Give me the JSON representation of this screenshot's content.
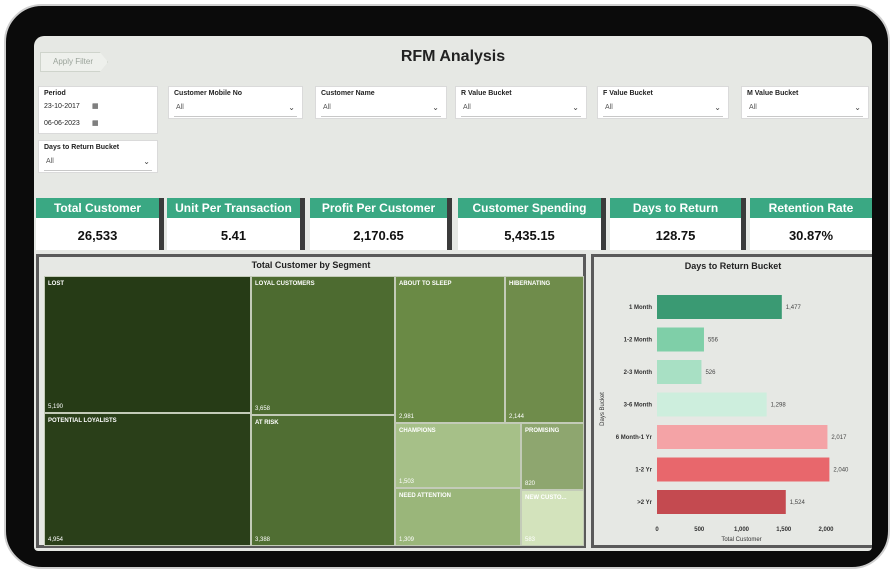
{
  "header": {
    "title": "RFM Analysis",
    "apply_filter": "Apply Filter"
  },
  "filters": {
    "period": {
      "label": "Period",
      "start": "23-10-2017",
      "end": "06-06-2023"
    },
    "customer_mobile": {
      "label": "Customer Mobile No",
      "value": "All"
    },
    "customer_name": {
      "label": "Customer Name",
      "value": "All"
    },
    "r_bucket": {
      "label": "R Value Bucket",
      "value": "All"
    },
    "f_bucket": {
      "label": "F Value Bucket",
      "value": "All"
    },
    "m_bucket": {
      "label": "M Value Bucket",
      "value": "All"
    },
    "days_bucket": {
      "label": "Days to Return Bucket",
      "value": "All"
    }
  },
  "kpis": [
    {
      "label": "Total Customer",
      "value": "26,533"
    },
    {
      "label": "Unit Per Transaction",
      "value": "5.41"
    },
    {
      "label": "Profit Per Customer",
      "value": "2,170.65"
    },
    {
      "label": "Customer Spending",
      "value": "5,435.15"
    },
    {
      "label": "Days to Return",
      "value": "128.75"
    },
    {
      "label": "Retention Rate",
      "value": "30.87%"
    }
  ],
  "treemap": {
    "title": "Total Customer by Segment",
    "tiles": [
      {
        "name": "LOST",
        "value": "5,190",
        "color": "#263b16"
      },
      {
        "name": "POTENTIAL LOYALISTS",
        "value": "4,954",
        "color": "#2a3f19"
      },
      {
        "name": "LOYAL CUSTOMERS",
        "value": "3,658",
        "color": "#4d6b30"
      },
      {
        "name": "AT RISK",
        "value": "3,388",
        "color": "#506e33"
      },
      {
        "name": "ABOUT TO SLEEP",
        "value": "2,981",
        "color": "#6a8a45"
      },
      {
        "name": "HIBERNATING",
        "value": "2,144",
        "color": "#6f8c4b"
      },
      {
        "name": "CHAMPIONS",
        "value": "1,503",
        "color": "#a6c088"
      },
      {
        "name": "NEED ATTENTION",
        "value": "1,309",
        "color": "#9ab67a"
      },
      {
        "name": "PROMISING",
        "value": "820",
        "color": "#8ea66f"
      },
      {
        "name": "NEW CUSTO...",
        "value": "583",
        "color": "#d3e3bc"
      }
    ]
  },
  "chart_data": {
    "type": "bar",
    "orientation": "horizontal",
    "title": "Days to Return Bucket",
    "xlabel": "Total Customer",
    "ylabel": "Days Bucket",
    "categories": [
      "1 Month",
      "1-2 Month",
      "2-3 Month",
      "3-6 Month",
      "6 Month-1 Yr",
      "1-2 Yr",
      ">2 Yr"
    ],
    "values": [
      1477,
      556,
      526,
      1298,
      2017,
      2040,
      1524
    ],
    "value_labels": [
      "1,477",
      "556",
      "526",
      "1,298",
      "2,017",
      "2,040",
      "1,524"
    ],
    "colors": [
      "#3a9a73",
      "#7fcfa8",
      "#a8e0c4",
      "#cdeedd",
      "#f4a3a6",
      "#e8676c",
      "#c44a50"
    ],
    "xlim": [
      0,
      2000
    ],
    "xticks": [
      0,
      500,
      1000,
      1500,
      2000
    ],
    "xtick_labels": [
      "0",
      "500",
      "1,000",
      "1,500",
      "2,000"
    ],
    "grid": false,
    "legend": "none"
  }
}
